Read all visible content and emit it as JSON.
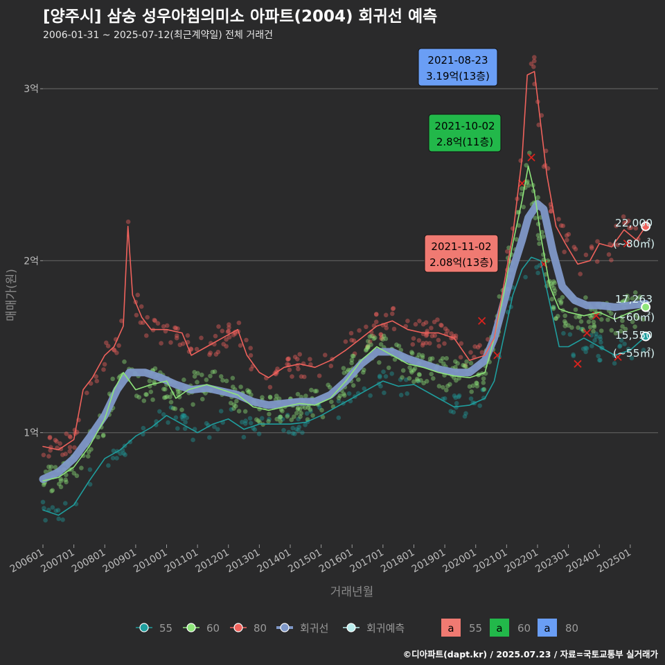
{
  "title": "[양주시] 삼숭 성우아침의미소 아파트(2004) 회귀선 예측",
  "subtitle": "2006-01-31 ~ 2025-07-12(최근계약일) 전체 거래건",
  "footer": "©디아파트(dapt.kr) / 2025.07.23 / 자료=국토교통부 실거래가",
  "colors": {
    "s55": "#1f9e9e",
    "s60": "#8ee57a",
    "s80": "#f0625c",
    "regression": "#7f98c8",
    "prediction": "#b8ecec",
    "grid": "#5a5a5a"
  },
  "chart_data": {
    "type": "line",
    "xlabel": "거래년월",
    "ylabel": "매매가(원)",
    "x_ticks": [
      "200601",
      "200701",
      "200801",
      "200901",
      "201001",
      "201101",
      "201201",
      "201301",
      "201401",
      "201501",
      "201601",
      "201701",
      "201801",
      "201901",
      "202001",
      "202101",
      "202201",
      "202301",
      "202401",
      "202501"
    ],
    "y_ticks": [
      {
        "value": 1,
        "label": "1억"
      },
      {
        "value": 2,
        "label": "2억"
      },
      {
        "value": 3,
        "label": "3억"
      }
    ],
    "x_range": [
      2006.0,
      2025.9
    ],
    "y_range": [
      0.35,
      3.25
    ],
    "y_unit": "억",
    "series": [
      {
        "name": "80",
        "color": "#f0625c",
        "points": [
          [
            2006.0,
            0.92
          ],
          [
            2006.5,
            0.9
          ],
          [
            2007.0,
            0.96
          ],
          [
            2007.3,
            1.25
          ],
          [
            2007.6,
            1.32
          ],
          [
            2008.0,
            1.45
          ],
          [
            2008.3,
            1.5
          ],
          [
            2008.6,
            1.62
          ],
          [
            2008.75,
            2.2
          ],
          [
            2008.9,
            1.8
          ],
          [
            2009.2,
            1.67
          ],
          [
            2009.5,
            1.6
          ],
          [
            2010.0,
            1.6
          ],
          [
            2010.5,
            1.58
          ],
          [
            2010.8,
            1.45
          ],
          [
            2011.3,
            1.5
          ],
          [
            2011.8,
            1.55
          ],
          [
            2012.3,
            1.6
          ],
          [
            2012.6,
            1.45
          ],
          [
            2013.0,
            1.35
          ],
          [
            2013.3,
            1.32
          ],
          [
            2013.8,
            1.38
          ],
          [
            2014.3,
            1.4
          ],
          [
            2014.8,
            1.38
          ],
          [
            2015.3,
            1.42
          ],
          [
            2015.8,
            1.48
          ],
          [
            2016.3,
            1.55
          ],
          [
            2016.8,
            1.62
          ],
          [
            2017.3,
            1.65
          ],
          [
            2017.8,
            1.6
          ],
          [
            2018.3,
            1.58
          ],
          [
            2018.8,
            1.58
          ],
          [
            2019.3,
            1.55
          ],
          [
            2019.8,
            1.42
          ],
          [
            2020.3,
            1.45
          ],
          [
            2020.6,
            1.55
          ],
          [
            2020.9,
            1.85
          ],
          [
            2021.2,
            2.15
          ],
          [
            2021.5,
            2.6
          ],
          [
            2021.67,
            3.08
          ],
          [
            2021.9,
            3.1
          ],
          [
            2022.1,
            2.8
          ],
          [
            2022.3,
            2.5
          ],
          [
            2022.6,
            2.2
          ],
          [
            2022.9,
            2.1
          ],
          [
            2023.3,
            1.98
          ],
          [
            2023.7,
            2.0
          ],
          [
            2024.0,
            2.1
          ],
          [
            2024.4,
            2.08
          ],
          [
            2024.8,
            2.18
          ],
          [
            2025.2,
            2.12
          ],
          [
            2025.5,
            2.2
          ]
        ],
        "end_label": "22,000",
        "end_area": "(~80㎡)"
      },
      {
        "name": "60",
        "color": "#8ee57a",
        "points": [
          [
            2006.0,
            0.72
          ],
          [
            2006.5,
            0.74
          ],
          [
            2007.0,
            0.8
          ],
          [
            2007.5,
            0.92
          ],
          [
            2008.0,
            1.08
          ],
          [
            2008.3,
            1.25
          ],
          [
            2008.6,
            1.35
          ],
          [
            2009.0,
            1.25
          ],
          [
            2009.5,
            1.28
          ],
          [
            2010.0,
            1.3
          ],
          [
            2010.3,
            1.2
          ],
          [
            2010.7,
            1.25
          ],
          [
            2011.3,
            1.28
          ],
          [
            2011.8,
            1.25
          ],
          [
            2012.3,
            1.22
          ],
          [
            2012.8,
            1.15
          ],
          [
            2013.3,
            1.13
          ],
          [
            2013.8,
            1.15
          ],
          [
            2014.3,
            1.17
          ],
          [
            2014.8,
            1.16
          ],
          [
            2015.3,
            1.2
          ],
          [
            2015.8,
            1.3
          ],
          [
            2016.3,
            1.42
          ],
          [
            2016.8,
            1.5
          ],
          [
            2017.3,
            1.45
          ],
          [
            2017.8,
            1.4
          ],
          [
            2018.3,
            1.38
          ],
          [
            2018.8,
            1.35
          ],
          [
            2019.3,
            1.33
          ],
          [
            2019.8,
            1.32
          ],
          [
            2020.3,
            1.35
          ],
          [
            2020.6,
            1.55
          ],
          [
            2020.9,
            1.8
          ],
          [
            2021.2,
            2.1
          ],
          [
            2021.5,
            2.35
          ],
          [
            2021.7,
            2.55
          ],
          [
            2021.9,
            2.4
          ],
          [
            2022.1,
            2.15
          ],
          [
            2022.4,
            1.85
          ],
          [
            2022.7,
            1.72
          ],
          [
            2023.0,
            1.7
          ],
          [
            2023.5,
            1.68
          ],
          [
            2024.0,
            1.7
          ],
          [
            2024.5,
            1.66
          ],
          [
            2025.0,
            1.7
          ],
          [
            2025.5,
            1.73
          ]
        ],
        "end_label": "17,263",
        "end_area": "(~60㎡)"
      },
      {
        "name": "55",
        "color": "#1f9e9e",
        "points": [
          [
            2006.0,
            0.55
          ],
          [
            2006.5,
            0.52
          ],
          [
            2007.0,
            0.58
          ],
          [
            2007.5,
            0.72
          ],
          [
            2008.0,
            0.85
          ],
          [
            2008.5,
            0.9
          ],
          [
            2009.0,
            0.98
          ],
          [
            2009.5,
            1.03
          ],
          [
            2010.0,
            1.1
          ],
          [
            2010.5,
            1.05
          ],
          [
            2011.0,
            1.0
          ],
          [
            2011.5,
            1.05
          ],
          [
            2012.0,
            1.08
          ],
          [
            2012.5,
            1.02
          ],
          [
            2013.0,
            1.05
          ],
          [
            2013.5,
            1.05
          ],
          [
            2014.0,
            1.05
          ],
          [
            2014.5,
            1.06
          ],
          [
            2015.0,
            1.1
          ],
          [
            2015.5,
            1.15
          ],
          [
            2016.0,
            1.2
          ],
          [
            2016.5,
            1.25
          ],
          [
            2017.0,
            1.3
          ],
          [
            2017.5,
            1.27
          ],
          [
            2018.0,
            1.28
          ],
          [
            2018.8,
            1.2
          ],
          [
            2019.3,
            1.15
          ],
          [
            2019.8,
            1.16
          ],
          [
            2020.3,
            1.2
          ],
          [
            2020.6,
            1.3
          ],
          [
            2020.9,
            1.55
          ],
          [
            2021.2,
            1.8
          ],
          [
            2021.5,
            1.95
          ],
          [
            2021.8,
            2.02
          ],
          [
            2022.1,
            2.0
          ],
          [
            2022.4,
            1.75
          ],
          [
            2022.7,
            1.5
          ],
          [
            2023.0,
            1.5
          ],
          [
            2023.5,
            1.55
          ],
          [
            2024.0,
            1.5
          ],
          [
            2024.5,
            1.45
          ],
          [
            2025.0,
            1.48
          ],
          [
            2025.5,
            1.56
          ]
        ],
        "end_label": "15,550",
        "end_area": "(~55㎡)"
      },
      {
        "name": "회귀선",
        "color": "#7f98c8",
        "points": [
          [
            2006.0,
            0.73
          ],
          [
            2006.5,
            0.77
          ],
          [
            2007.0,
            0.85
          ],
          [
            2007.5,
            0.97
          ],
          [
            2008.0,
            1.1
          ],
          [
            2008.4,
            1.25
          ],
          [
            2008.8,
            1.35
          ],
          [
            2009.3,
            1.35
          ],
          [
            2009.8,
            1.32
          ],
          [
            2010.3,
            1.28
          ],
          [
            2010.8,
            1.25
          ],
          [
            2011.3,
            1.26
          ],
          [
            2011.8,
            1.24
          ],
          [
            2012.3,
            1.22
          ],
          [
            2012.8,
            1.18
          ],
          [
            2013.3,
            1.16
          ],
          [
            2013.8,
            1.17
          ],
          [
            2014.3,
            1.18
          ],
          [
            2014.8,
            1.18
          ],
          [
            2015.3,
            1.22
          ],
          [
            2015.8,
            1.3
          ],
          [
            2016.3,
            1.4
          ],
          [
            2016.8,
            1.47
          ],
          [
            2017.3,
            1.47
          ],
          [
            2017.8,
            1.43
          ],
          [
            2018.3,
            1.4
          ],
          [
            2018.8,
            1.37
          ],
          [
            2019.3,
            1.35
          ],
          [
            2019.8,
            1.35
          ],
          [
            2020.3,
            1.42
          ],
          [
            2020.6,
            1.55
          ],
          [
            2020.9,
            1.75
          ],
          [
            2021.2,
            1.95
          ],
          [
            2021.5,
            2.12
          ],
          [
            2021.7,
            2.25
          ],
          [
            2022.0,
            2.33
          ],
          [
            2022.2,
            2.3
          ],
          [
            2022.5,
            2.05
          ],
          [
            2022.8,
            1.85
          ],
          [
            2023.2,
            1.77
          ],
          [
            2023.6,
            1.74
          ],
          [
            2024.0,
            1.74
          ],
          [
            2024.5,
            1.73
          ],
          [
            2025.0,
            1.74
          ],
          [
            2025.5,
            1.75
          ]
        ]
      }
    ],
    "callouts": [
      {
        "date": "2021-08-23",
        "text": "3.19억(13층)",
        "size": "80",
        "color": "#6a9ef5",
        "x": 2021.65,
        "y": 3.19
      },
      {
        "date": "2021-10-02",
        "text": "2.8억(11층)",
        "size": "60",
        "color": "#22b84a",
        "x": 2021.75,
        "y": 2.8
      },
      {
        "date": "2021-11-02",
        "text": "2.08억(13층)",
        "size": "55",
        "color": "#f07a72",
        "x": 2021.83,
        "y": 2.08
      }
    ],
    "legend": {
      "lines": [
        {
          "label": "55",
          "color": "#1f9e9e"
        },
        {
          "label": "60",
          "color": "#8ee57a"
        },
        {
          "label": "80",
          "color": "#f0625c"
        },
        {
          "label": "회귀선",
          "color": "#7f98c8"
        },
        {
          "label": "회귀예측",
          "color": "#b8ecec"
        }
      ],
      "boxes": [
        {
          "glyph": "a",
          "label": "55",
          "color": "#f07a72"
        },
        {
          "glyph": "a",
          "label": "60",
          "color": "#22b84a"
        },
        {
          "glyph": "a",
          "label": "80",
          "color": "#6a9ef5"
        }
      ]
    }
  }
}
